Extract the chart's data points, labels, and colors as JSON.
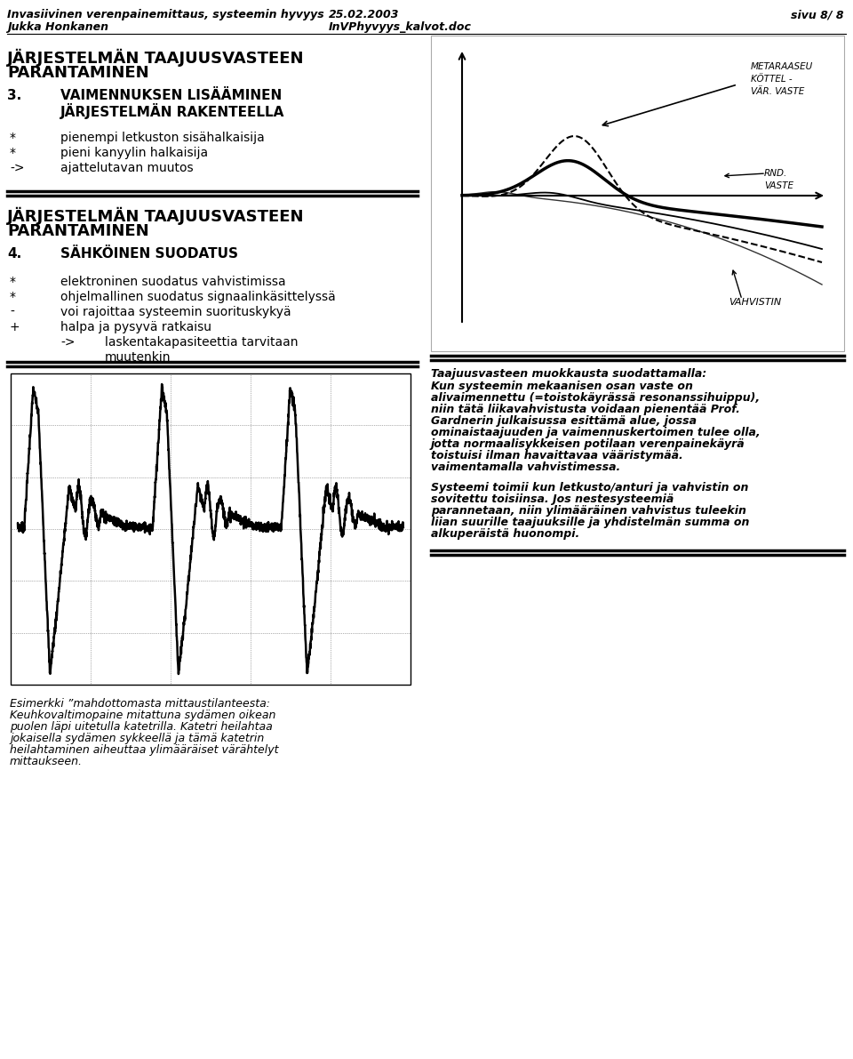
{
  "bg_color": "#ffffff",
  "header_line1": "Invasiivinen verenpainemittaus, systeemin hyvyys",
  "header_date": "25.02.2003",
  "header_page": "sivu 8/ 8",
  "header_line2": "Jukka Honkanen",
  "header_doc": "InVPhyvyys_kalvot.doc",
  "section1_title_line1": "JÄRJESTELMÄN TAAJUUSVASTEEN",
  "section1_title_line2": "PARANTAMINEN",
  "section3_number": "3.",
  "section3_title_line1": "VAIMENNUKSEN LISÄÄMINEN",
  "section3_title_line2": "JÄRJESTELMÄN RAKENTEELLA",
  "section3_bullets": [
    [
      "*",
      "pienempi letkuston sisähalkaisija"
    ],
    [
      "*",
      "pieni kanyylin halkaisija"
    ],
    [
      "->",
      "ajattelutavan muutos"
    ]
  ],
  "section2_title_line1": "JÄRJESTELMÄN TAAJUUSVASTEEN",
  "section2_title_line2": "PARANTAMINEN",
  "section4_number": "4.",
  "section4_title": "SÄHKÖINEN SUODATUS",
  "section4_bullets": [
    [
      "*",
      "elektroninen suodatus vahvistimissa"
    ],
    [
      "*",
      "ohjelmallinen suodatus signaalinkäsittelyssä"
    ],
    [
      "-",
      "voi rajoittaa systeemin suorituskykyä"
    ],
    [
      "+",
      "halpa ja pysyvä ratkaisu"
    ],
    [
      "->",
      "laskentakapasiteettia tarvitaan"
    ],
    [
      "",
      "muutenkin"
    ]
  ],
  "caption_line1": "Esimerkki ”mahdottomasta mittaustilanteesta:",
  "caption_line2": "Keuhkovaltimopaine mitattuna sydämen oikean",
  "caption_line3": "puolen läpi uitetulla katetrilla. Katetri heilahtaa",
  "caption_line4": "jokaisella sydämen sykkeellä ja tämä katetrin",
  "caption_line5": "heilahtaminen aiheuttaa ylimääräiset värähtelyt",
  "caption_line6": "mittaukseen.",
  "right_bold_line1": "Taajuusvasteen muokkausta suodattamalla:",
  "right_italic_lines": [
    "Kun systeemin mekaanisen osan vaste on",
    "alivaimennettu (=toistokäyrässä resonanssihuippu),",
    "niin tätä liikavahvistusta voidaan pienentää Prof.",
    "Gardnerin julkaisussa esittämä alue, jossa",
    "ominaistaajuuden ja vaimennuskertoimen tulee olla,",
    "jotta normaalisykkeisen potilaan verenpainekäyrä",
    "toistuisi ilman havaittavaa vääristymää.",
    "vaimentamalla vahvistimessa."
  ],
  "right_italic_lines2": [
    "Systeemi toimii kun letkusto/anturi ja vahvistin on",
    "sovitettu toisiinsa. Jos nestesysteemiä",
    "parannetaan, niin ylimääräinen vahvistus tuleekin",
    "liian suurille taajuuksille ja yhdistelmän summa on",
    "alkuperäistä huonompi."
  ],
  "font_size_header": 9,
  "font_size_section_title": 13,
  "font_size_number": 11,
  "font_size_bullet": 10,
  "font_size_caption": 9,
  "font_size_right_bold": 9,
  "font_size_right_italic": 9
}
